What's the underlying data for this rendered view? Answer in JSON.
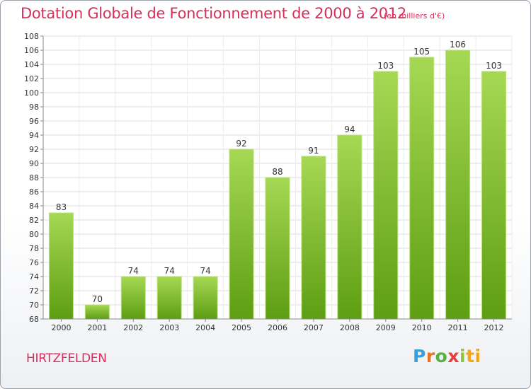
{
  "chart_data": {
    "type": "bar",
    "title": "Dotation Globale de Fonctionnement de 2000 à 2012",
    "subtitle": "(en milliers d'€)",
    "categories": [
      "2000",
      "2001",
      "2002",
      "2003",
      "2004",
      "2005",
      "2006",
      "2007",
      "2008",
      "2009",
      "2010",
      "2011",
      "2012"
    ],
    "values": [
      83,
      70,
      74,
      74,
      74,
      92,
      88,
      91,
      94,
      103,
      105,
      106,
      103
    ],
    "ylim": [
      68,
      108
    ],
    "yticks": [
      68,
      70,
      72,
      74,
      76,
      78,
      80,
      82,
      84,
      86,
      88,
      90,
      92,
      94,
      96,
      98,
      100,
      102,
      104,
      106,
      108
    ],
    "grid": true,
    "data_labels": true,
    "bar_color": "#7bbf2d"
  },
  "commune": "HIRTZFELDEN",
  "brand": {
    "letters": [
      "P",
      "r",
      "o",
      "x",
      "i",
      "ti"
    ]
  },
  "colors": {
    "title": "#d62f5b",
    "bar_light": "#a6d854",
    "bar_dark": "#5d9e12",
    "grid": "#dcdcdc"
  }
}
